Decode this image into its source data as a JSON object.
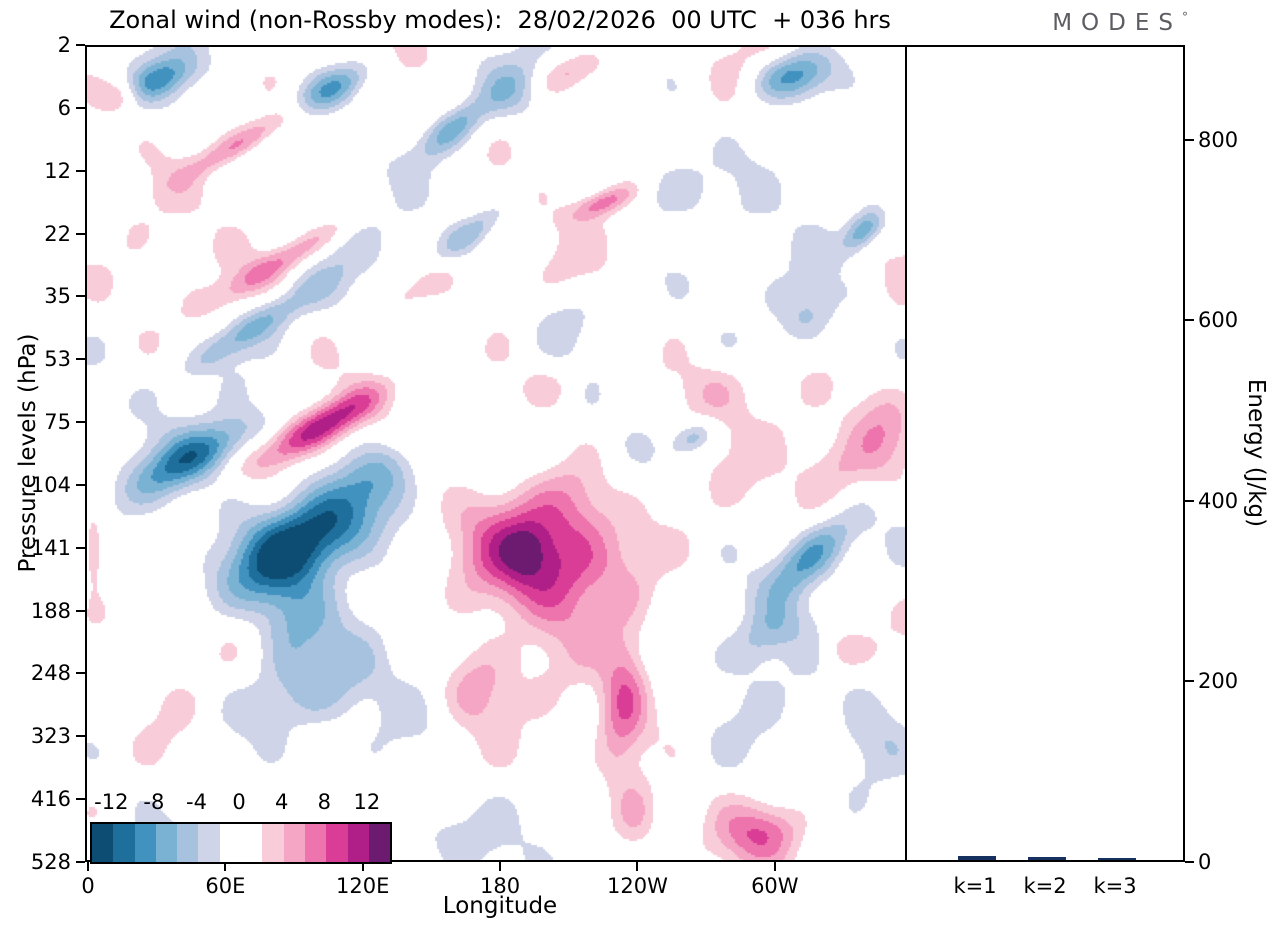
{
  "title": "Zonal wind (non-Rossby modes):  28/02/2026  00 UTC  + 036 hrs",
  "logo": {
    "text": "MODES",
    "degree": "°"
  },
  "axes": {
    "y_label": "Pressure levels (hPa)",
    "y_ticks": [
      "2",
      "6",
      "12",
      "22",
      "35",
      "53",
      "75",
      "104",
      "141",
      "188",
      "248",
      "323",
      "416",
      "528"
    ],
    "x_label": "Longitude",
    "x_ticks": [
      {
        "label": "0",
        "lon": 0
      },
      {
        "label": "60E",
        "lon": 60
      },
      {
        "label": "120E",
        "lon": 120
      },
      {
        "label": "180",
        "lon": 180
      },
      {
        "label": "120W",
        "lon": 240
      },
      {
        "label": "60W",
        "lon": 300
      }
    ],
    "energy_label": "Energy (J/kg)",
    "energy_ticks": [
      0,
      200,
      400,
      600,
      800
    ],
    "energy_max": 905
  },
  "colorbar": {
    "labels": [
      "-12",
      "-8",
      "-4",
      "0",
      "4",
      "8",
      "12"
    ],
    "boundaries": [
      -14,
      -12,
      -10,
      -8,
      -6,
      -4,
      -2,
      0,
      2,
      4,
      6,
      8,
      10,
      12,
      14
    ],
    "colors": [
      "#0d4d73",
      "#1f6f9c",
      "#4292c0",
      "#7ab2d4",
      "#a6c2de",
      "#cfd4e9",
      "#ffffff",
      "#ffffff",
      "#f9ccd9",
      "#f5a6c4",
      "#ee74ad",
      "#da3d96",
      "#b01f87",
      "#6c1b71"
    ]
  },
  "chart_data": {
    "type": "filled_contour_with_bars",
    "contour": {
      "title": "Zonal wind (non-Rossby modes): 28/02/2026 00 UTC + 036 hrs",
      "x_domain_deg": [
        0,
        360
      ],
      "x_ticks": [
        "0",
        "60E",
        "120E",
        "180",
        "120W",
        "60W"
      ],
      "pressure_levels_hpa": [
        2,
        6,
        12,
        22,
        35,
        53,
        75,
        104,
        141,
        188,
        248,
        323,
        416,
        528
      ],
      "contour_levels": [
        -14,
        -12,
        -10,
        -8,
        -6,
        -4,
        -2,
        0,
        2,
        4,
        6,
        8,
        10,
        12,
        14
      ],
      "level_labels": [
        "-12",
        "-8",
        "-4",
        "0",
        "4",
        "8",
        "12"
      ],
      "main_features": [
        "strong negative (blue) anomaly ~95E near 104-188 hPa, NE-SW tilted",
        "strong positive (magenta) anomaly ~165W near 104-248 hPa",
        "positive band ~90-120E near 75 hPa",
        "tilted alternating bands in upper-left stratosphere",
        "negative tilted band ~45W near 141-188 hPa"
      ],
      "blobs": [
        {
          "x": 0.268,
          "y": 0.605,
          "sx": 0.105,
          "sy": 0.048,
          "rot": -32,
          "a": -15.5
        },
        {
          "x": 0.36,
          "y": 0.52,
          "sx": 0.06,
          "sy": 0.035,
          "rot": -35,
          "a": -6
        },
        {
          "x": 0.25,
          "y": 0.7,
          "sx": 0.05,
          "sy": 0.06,
          "rot": 0,
          "a": -5
        },
        {
          "x": 0.135,
          "y": 0.5,
          "sx": 0.085,
          "sy": 0.028,
          "rot": -28,
          "a": -9
        },
        {
          "x": 0.2,
          "y": 0.345,
          "sx": 0.1,
          "sy": 0.02,
          "rot": -33,
          "a": -6.5
        },
        {
          "x": 0.085,
          "y": 0.04,
          "sx": 0.05,
          "sy": 0.022,
          "rot": -25,
          "a": -7
        },
        {
          "x": 0.3,
          "y": 0.05,
          "sx": 0.055,
          "sy": 0.022,
          "rot": -28,
          "a": -8
        },
        {
          "x": 0.445,
          "y": 0.1,
          "sx": 0.05,
          "sy": 0.02,
          "rot": -38,
          "a": -6.5
        },
        {
          "x": 0.47,
          "y": 0.225,
          "sx": 0.055,
          "sy": 0.018,
          "rot": -35,
          "a": -5
        },
        {
          "x": 0.885,
          "y": 0.625,
          "sx": 0.07,
          "sy": 0.03,
          "rot": -42,
          "a": -9.5
        },
        {
          "x": 0.83,
          "y": 0.72,
          "sx": 0.05,
          "sy": 0.03,
          "rot": -40,
          "a": -5
        },
        {
          "x": 0.86,
          "y": 0.035,
          "sx": 0.05,
          "sy": 0.028,
          "rot": -15,
          "a": -9
        },
        {
          "x": 0.948,
          "y": 0.225,
          "sx": 0.032,
          "sy": 0.018,
          "rot": -45,
          "a": -8.5
        },
        {
          "x": 0.74,
          "y": 0.48,
          "sx": 0.028,
          "sy": 0.018,
          "rot": -30,
          "a": -6
        },
        {
          "x": 0.26,
          "y": 0.79,
          "sx": 0.11,
          "sy": 0.05,
          "rot": -15,
          "a": -3.6
        },
        {
          "x": 0.42,
          "y": 0.97,
          "sx": 0.07,
          "sy": 0.04,
          "rot": 0,
          "a": -3.4
        },
        {
          "x": 0.58,
          "y": 0.33,
          "sx": 0.045,
          "sy": 0.04,
          "rot": 0,
          "a": -3.4
        },
        {
          "x": 0.955,
          "y": 0.85,
          "sx": 0.05,
          "sy": 0.07,
          "rot": 0,
          "a": -3.6
        },
        {
          "x": 0.52,
          "y": 0.05,
          "sx": 0.04,
          "sy": 0.03,
          "rot": -30,
          "a": -4
        },
        {
          "x": 0.7,
          "y": 0.17,
          "sx": 0.05,
          "sy": 0.04,
          "rot": -35,
          "a": -3.5
        },
        {
          "x": 0.88,
          "y": 0.33,
          "sx": 0.04,
          "sy": 0.03,
          "rot": -40,
          "a": -4
        },
        {
          "x": 0.555,
          "y": 0.62,
          "sx": 0.095,
          "sy": 0.075,
          "rot": 12,
          "a": 12.5
        },
        {
          "x": 0.6,
          "y": 0.545,
          "sx": 0.05,
          "sy": 0.05,
          "rot": 0,
          "a": 3
        },
        {
          "x": 0.535,
          "y": 0.62,
          "sx": 0.022,
          "sy": 0.03,
          "rot": 0,
          "a": 3
        },
        {
          "x": 0.655,
          "y": 0.8,
          "sx": 0.028,
          "sy": 0.09,
          "rot": 5,
          "a": 7
        },
        {
          "x": 0.67,
          "y": 0.95,
          "sx": 0.03,
          "sy": 0.05,
          "rot": 0,
          "a": 5
        },
        {
          "x": 0.285,
          "y": 0.465,
          "sx": 0.085,
          "sy": 0.022,
          "rot": -30,
          "a": 11
        },
        {
          "x": 0.24,
          "y": 0.26,
          "sx": 0.1,
          "sy": 0.018,
          "rot": -31,
          "a": 6.5
        },
        {
          "x": 0.19,
          "y": 0.115,
          "sx": 0.08,
          "sy": 0.016,
          "rot": -30,
          "a": 6
        },
        {
          "x": 0.04,
          "y": 0.06,
          "sx": 0.03,
          "sy": 0.02,
          "rot": -20,
          "a": 5.5
        },
        {
          "x": 0.63,
          "y": 0.19,
          "sx": 0.04,
          "sy": 0.015,
          "rot": -22,
          "a": 7
        },
        {
          "x": 0.97,
          "y": 0.47,
          "sx": 0.045,
          "sy": 0.06,
          "rot": 0,
          "a": 6
        },
        {
          "x": 0.91,
          "y": 0.52,
          "sx": 0.04,
          "sy": 0.04,
          "rot": -20,
          "a": 4
        },
        {
          "x": 0.825,
          "y": 0.965,
          "sx": 0.055,
          "sy": 0.035,
          "rot": 0,
          "a": 6
        },
        {
          "x": 0.007,
          "y": 0.615,
          "sx": 0.012,
          "sy": 0.04,
          "rot": 0,
          "a": 6.5
        },
        {
          "x": 0.4,
          "y": 0.3,
          "sx": 0.06,
          "sy": 0.02,
          "rot": -30,
          "a": 3.5
        },
        {
          "x": 0.56,
          "y": 0.42,
          "sx": 0.04,
          "sy": 0.03,
          "rot": -20,
          "a": 4
        },
        {
          "x": 0.475,
          "y": 0.78,
          "sx": 0.04,
          "sy": 0.05,
          "rot": 0,
          "a": 5
        },
        {
          "x": 0.59,
          "y": 0.03,
          "sx": 0.05,
          "sy": 0.02,
          "rot": -20,
          "a": 4
        },
        {
          "x": 0.76,
          "y": 0.42,
          "sx": 0.05,
          "sy": 0.035,
          "rot": -25,
          "a": 3.5
        },
        {
          "x": 0.92,
          "y": 0.74,
          "sx": 0.03,
          "sy": 0.03,
          "rot": 0,
          "a": 4
        }
      ],
      "noise": [
        1.6,
        1.2,
        1.8
      ]
    },
    "bars": {
      "categories": [
        "k=1",
        "k=2",
        "k=3"
      ],
      "values": [
        5,
        3,
        2
      ],
      "color": "#16305f",
      "ylabel": "Energy (J/kg)",
      "y_ticks": [
        0,
        200,
        400,
        600,
        800
      ],
      "ylim": [
        0,
        905
      ]
    }
  }
}
